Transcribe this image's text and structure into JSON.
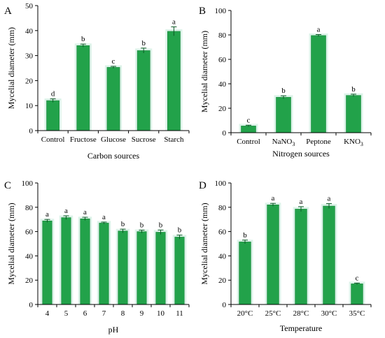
{
  "bar_color": "#22a24a",
  "bar_edge": "#1c8a3e",
  "halo_color": "#cfeee0",
  "chart_data": [
    {
      "panel": "A",
      "type": "bar",
      "categories": [
        "Control",
        "Fructose",
        "Glucose",
        "Sucrose",
        "Starch"
      ],
      "values": [
        12,
        34,
        25.3,
        32,
        39.7
      ],
      "errors": [
        0.7,
        0.6,
        0.4,
        1.0,
        1.8
      ],
      "letters": [
        "d",
        "b",
        "c",
        "b",
        "a"
      ],
      "xlabel": "Carbon sources",
      "ylabel": "Mycelial diameter (mm)",
      "ylim": [
        0,
        50
      ],
      "yticks": [
        0,
        10,
        20,
        30,
        40,
        50
      ],
      "grid": false
    },
    {
      "panel": "B",
      "type": "bar",
      "categories": [
        "Control",
        "NaNO₃",
        "Peptone",
        "KNO₃"
      ],
      "values": [
        5.5,
        29,
        79.5,
        30.5
      ],
      "errors": [
        0.6,
        1.2,
        0.8,
        1.0
      ],
      "letters": [
        "c",
        "b",
        "a",
        "b"
      ],
      "xlabel": "Nitrogen sources",
      "ylabel": "Mycelial diameter (mm)",
      "ylim": [
        0,
        100
      ],
      "yticks": [
        0,
        20,
        40,
        60,
        80,
        100
      ],
      "grid": false
    },
    {
      "panel": "C",
      "type": "bar",
      "categories": [
        "4",
        "5",
        "6",
        "7",
        "8",
        "9",
        "10",
        "11"
      ],
      "values": [
        68.8,
        71.5,
        70.5,
        67,
        60.5,
        60,
        59.5,
        55.5
      ],
      "errors": [
        1.2,
        1.5,
        1.3,
        0.8,
        1.5,
        1.2,
        1.8,
        1.6
      ],
      "letters": [
        "a",
        "a",
        "a",
        "a",
        "b",
        "b",
        "b",
        "b"
      ],
      "xlabel": "pH",
      "ylabel": "Mycelial diameter (mm)",
      "ylim": [
        0,
        100
      ],
      "yticks": [
        0,
        20,
        40,
        60,
        80,
        100
      ],
      "grid": false
    },
    {
      "panel": "D",
      "type": "bar",
      "categories": [
        "20°C",
        "25°C",
        "28°C",
        "30°C",
        "35°C"
      ],
      "values": [
        51.5,
        82,
        78.5,
        81,
        17
      ],
      "errors": [
        1.5,
        1.2,
        2.0,
        2.0,
        0.6
      ],
      "letters": [
        "b",
        "a",
        "a",
        "a",
        "c"
      ],
      "xlabel": "Temperature",
      "ylabel": "Mycelial diameter (mm)",
      "ylim": [
        0,
        100
      ],
      "yticks": [
        0,
        20,
        40,
        60,
        80,
        100
      ],
      "grid": false
    }
  ]
}
